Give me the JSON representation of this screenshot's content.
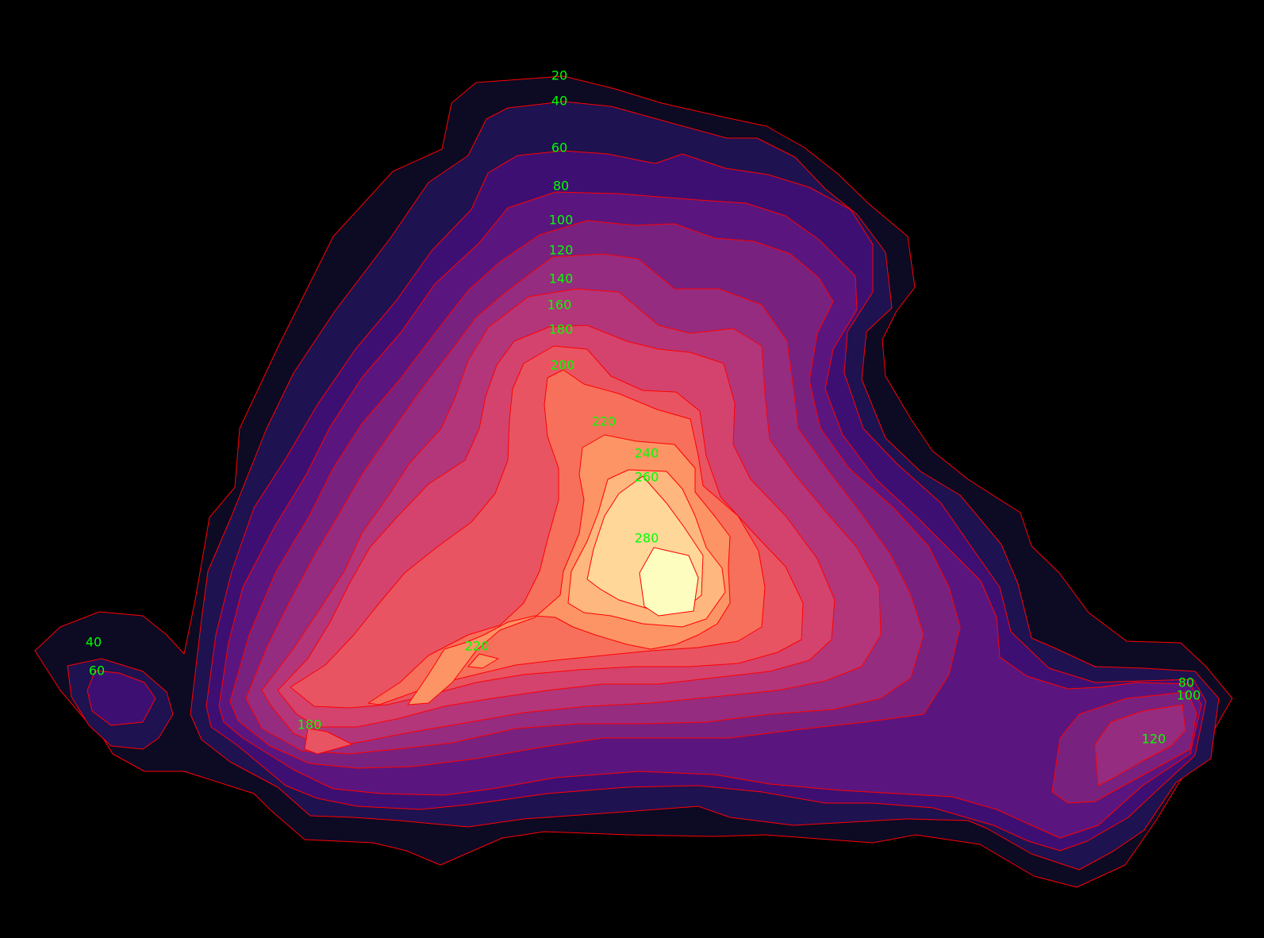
{
  "chart_data": {
    "type": "contour",
    "title": "",
    "xlabel": "",
    "ylabel": "",
    "axes_visible": false,
    "grid": false,
    "legend": "none",
    "background_color": "#000000",
    "contour_line_color": "#ff0000",
    "label_color": "#00ff00",
    "colormap": "magma",
    "levels": [
      20,
      40,
      60,
      80,
      100,
      120,
      140,
      160,
      180,
      200,
      220,
      240,
      260,
      280
    ],
    "fill_colors": {
      "20": "#0d0a24",
      "40": "#1e1250",
      "60": "#3e0f72",
      "80": "#5a167e",
      "100": "#78217f",
      "120": "#952c80",
      "140": "#b3367a",
      "160": "#d3436e",
      "180": "#e95462",
      "200": "#f7705c",
      "220": "#fc9465",
      "240": "#feb77e",
      "260": "#fed799",
      "280": "#fcfdbf"
    },
    "contour_labels": [
      "20",
      "40",
      "60",
      "80",
      "100",
      "120",
      "140",
      "160",
      "180",
      "200",
      "220",
      "240",
      "260",
      "280",
      "220",
      "180",
      "40",
      "60",
      "80",
      "100",
      "120"
    ]
  }
}
